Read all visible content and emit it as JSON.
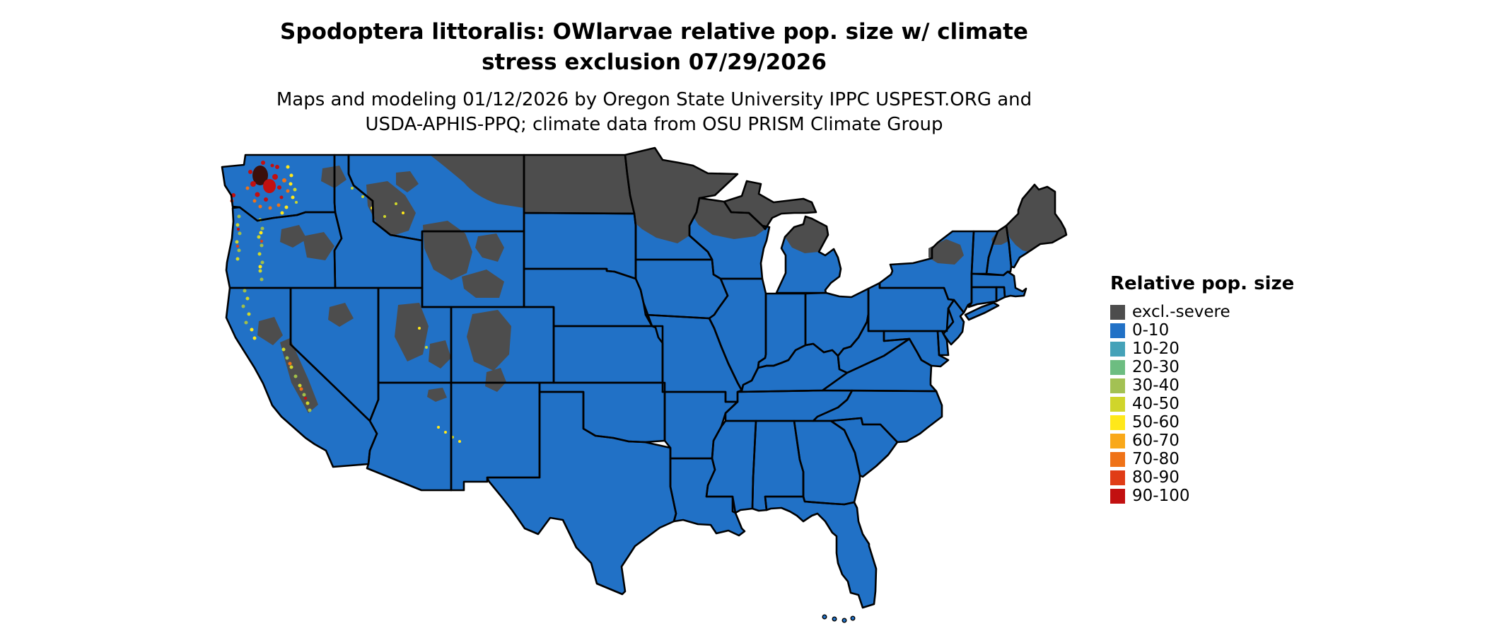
{
  "title": {
    "line1": "Spodoptera littoralis: OWlarvae relative pop. size w/ climate",
    "line2": "stress exclusion 07/29/2026"
  },
  "subtitle": {
    "line1": "Maps and modeling 01/12/2026 by Oregon State University IPPC USPEST.ORG and",
    "line2": "USDA-APHIS-PPQ; climate data from OSU PRISM Climate Group"
  },
  "legend": {
    "title": "Relative pop. size",
    "entries": [
      {
        "label": "excl.-severe",
        "color": "#4d4d4d"
      },
      {
        "label": "0-10",
        "color": "#2171c6"
      },
      {
        "label": "10-20",
        "color": "#45a2b8"
      },
      {
        "label": "20-30",
        "color": "#6dbd81"
      },
      {
        "label": "30-40",
        "color": "#a3c153"
      },
      {
        "label": "40-50",
        "color": "#d0d52b"
      },
      {
        "label": "50-60",
        "color": "#ffe81a"
      },
      {
        "label": "60-70",
        "color": "#f9a819"
      },
      {
        "label": "70-80",
        "color": "#ef7217"
      },
      {
        "label": "80-90",
        "color": "#e03c16"
      },
      {
        "label": "90-100",
        "color": "#c21010"
      }
    ]
  },
  "map": {
    "summary": "Choropleth of the conterminous United States. Most of the country is mapped 0-10 (blue). Northern-tier areas (North Dakota, Minnesota, northern Wisconsin, upper Michigan, northern New England/Maine, Adirondacks) and Rocky Mountain areas (western Montana, Yellowstone region, Colorado Rockies, Utah ranges) are excluded by severe climate stress (dark gray). Highest relative population sizes (yellow to red) appear in western Washington (Puget lowlands) and along the Cascade, Coast and Sierra Nevada ranges.",
    "base_color": "#2171c6",
    "exclusion_color": "#4d4d4d",
    "border_color": "#000000",
    "background": "#ffffff"
  }
}
